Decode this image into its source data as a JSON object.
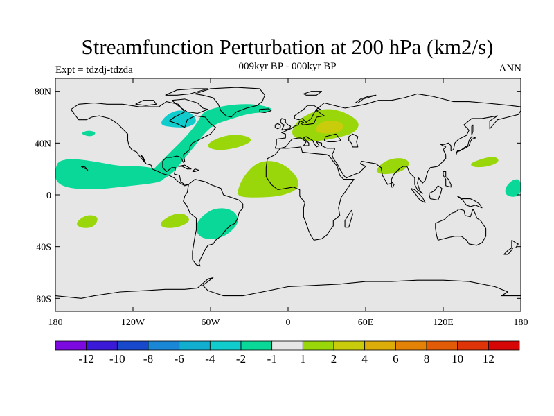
{
  "title": "Streamfunction Perturbation at 200 hPa (km2/s)",
  "subtitle": "009kyr BP - 000kyr BP",
  "left_string": "Expt = tdzdj-tdzda",
  "right_string": "ANN",
  "map": {
    "projection": "cylindrical-equidistant",
    "background": "#e6e6e6",
    "lon_range": [
      -180,
      180
    ],
    "lat_range": [
      -90,
      90
    ],
    "lat_ticks": [
      {
        "value": 80,
        "label": "80N"
      },
      {
        "value": 40,
        "label": "40N"
      },
      {
        "value": 0,
        "label": "0"
      },
      {
        "value": -40,
        "label": "40S"
      },
      {
        "value": -80,
        "label": "80S"
      }
    ],
    "lon_ticks": [
      {
        "value": -180,
        "label": "180"
      },
      {
        "value": -120,
        "label": "120W"
      },
      {
        "value": -60,
        "label": "60W"
      },
      {
        "value": 0,
        "label": "0"
      },
      {
        "value": 60,
        "label": "60E"
      },
      {
        "value": 120,
        "label": "120E"
      },
      {
        "value": 180,
        "label": "180"
      }
    ]
  },
  "colorbar": {
    "colors": [
      "#7c0ae0",
      "#3a1ad8",
      "#1848cc",
      "#1a86d6",
      "#12aed0",
      "#10cccc",
      "#0ad898",
      "#e6e6e6",
      "#9ad70a",
      "#c8cc0a",
      "#dcac08",
      "#e48208",
      "#e25c08",
      "#de3408",
      "#d60606"
    ],
    "labels": [
      "-12",
      "-10",
      "-8",
      "-6",
      "-4",
      "-2",
      "-1",
      "1",
      "2",
      "4",
      "6",
      "8",
      "10",
      "12"
    ]
  },
  "chart_data": {
    "type": "contour-map",
    "variable": "Streamfunction Perturbation at 200 hPa",
    "units": "km2/s",
    "levels": [
      -12,
      -10,
      -8,
      -6,
      -4,
      -2,
      -1,
      1,
      2,
      4,
      6,
      8,
      10,
      12
    ],
    "regions": [
      {
        "name": "north-atlantic-canada-low",
        "level_range": [
          -2,
          -1
        ],
        "color": "#0ad898",
        "points": [
          [
            -110,
            12
          ],
          [
            -106,
            18
          ],
          [
            -96,
            28
          ],
          [
            -86,
            38
          ],
          [
            -78,
            46
          ],
          [
            -70,
            56
          ],
          [
            -66,
            64
          ],
          [
            -54,
            68
          ],
          [
            -40,
            70
          ],
          [
            -25,
            70
          ],
          [
            -12,
            67
          ],
          [
            -14,
            64
          ],
          [
            -30,
            63
          ],
          [
            -46,
            58
          ],
          [
            -58,
            54
          ],
          [
            -66,
            46
          ],
          [
            -72,
            38
          ],
          [
            -82,
            26
          ],
          [
            -88,
            18
          ],
          [
            -96,
            12
          ],
          [
            -104,
            10
          ]
        ]
      },
      {
        "name": "hudson-bay-core",
        "level_range": [
          -4,
          -2
        ],
        "color": "#10cccc",
        "points": [
          [
            -100,
            54
          ],
          [
            -94,
            62
          ],
          [
            -84,
            66
          ],
          [
            -74,
            63
          ],
          [
            -70,
            56
          ],
          [
            -78,
            52
          ],
          [
            -88,
            52
          ]
        ]
      },
      {
        "name": "central-pacific-low",
        "level_range": [
          -2,
          -1
        ],
        "color": "#0ad898",
        "points": [
          [
            -180,
            20
          ],
          [
            -178,
            26
          ],
          [
            -168,
            28
          ],
          [
            -150,
            26
          ],
          [
            -130,
            22
          ],
          [
            -110,
            22
          ],
          [
            -100,
            19
          ],
          [
            -95,
            14
          ],
          [
            -98,
            10
          ],
          [
            -112,
            8
          ],
          [
            -130,
            6
          ],
          [
            -150,
            4
          ],
          [
            -170,
            5
          ],
          [
            -180,
            10
          ]
        ]
      },
      {
        "name": "north-pacific-patch",
        "level_range": [
          -2,
          -1
        ],
        "color": "#0ad898",
        "points": [
          [
            -160,
            48
          ],
          [
            -154,
            50
          ],
          [
            -148,
            48
          ],
          [
            -152,
            45
          ],
          [
            -158,
            46
          ]
        ]
      },
      {
        "name": "south-america-low",
        "level_range": [
          -2,
          -1
        ],
        "color": "#0ad898",
        "points": [
          [
            -72,
            -22
          ],
          [
            -60,
            -11
          ],
          [
            -48,
            -10
          ],
          [
            -40,
            -14
          ],
          [
            -38,
            -22
          ],
          [
            -48,
            -32
          ],
          [
            -60,
            -35
          ],
          [
            -70,
            -32
          ]
        ]
      },
      {
        "name": "west-pacific-low",
        "level_range": [
          -2,
          -1
        ],
        "color": "#0ad898",
        "points": [
          [
            168,
            6
          ],
          [
            174,
            12
          ],
          [
            180,
            12
          ],
          [
            180,
            0
          ],
          [
            174,
            -2
          ],
          [
            168,
            0
          ]
        ]
      },
      {
        "name": "europe-high",
        "level_range": [
          1,
          2
        ],
        "color": "#9ad70a",
        "points": [
          [
            2,
            47
          ],
          [
            6,
            56
          ],
          [
            16,
            63
          ],
          [
            30,
            67
          ],
          [
            44,
            64
          ],
          [
            56,
            56
          ],
          [
            52,
            48
          ],
          [
            38,
            44
          ],
          [
            20,
            41
          ],
          [
            8,
            43
          ]
        ]
      },
      {
        "name": "europe-high-core",
        "level_range": [
          2,
          4
        ],
        "color": "#c8cc0a",
        "points": [
          [
            20,
            49
          ],
          [
            24,
            56
          ],
          [
            36,
            58
          ],
          [
            44,
            54
          ],
          [
            40,
            48
          ],
          [
            28,
            47
          ]
        ]
      },
      {
        "name": "north-atlantic-high",
        "level_range": [
          1,
          2
        ],
        "color": "#9ad70a",
        "points": [
          [
            -64,
            38
          ],
          [
            -55,
            44
          ],
          [
            -42,
            47
          ],
          [
            -30,
            45
          ],
          [
            -28,
            41
          ],
          [
            -40,
            36
          ],
          [
            -56,
            34
          ]
        ]
      },
      {
        "name": "tropical-atlantic-high",
        "level_range": [
          1,
          2
        ],
        "color": "#9ad70a",
        "points": [
          [
            -40,
            0
          ],
          [
            -36,
            12
          ],
          [
            -26,
            24
          ],
          [
            -14,
            27
          ],
          [
            -2,
            23
          ],
          [
            8,
            13
          ],
          [
            8,
            4
          ],
          [
            -6,
            -1
          ],
          [
            -20,
            -2
          ],
          [
            -34,
            -2
          ]
        ]
      },
      {
        "name": "south-pacific-high",
        "level_range": [
          1,
          2
        ],
        "color": "#9ad70a",
        "points": [
          [
            -100,
            -22
          ],
          [
            -90,
            -15
          ],
          [
            -80,
            -14
          ],
          [
            -75,
            -20
          ],
          [
            -84,
            -25
          ],
          [
            -96,
            -26
          ]
        ]
      },
      {
        "name": "southwest-pacific-high",
        "level_range": [
          1,
          2
        ],
        "color": "#9ad70a",
        "points": [
          [
            -165,
            -22
          ],
          [
            -156,
            -15
          ],
          [
            -146,
            -17
          ],
          [
            -150,
            -25
          ],
          [
            -160,
            -26
          ]
        ]
      },
      {
        "name": "india-high",
        "level_range": [
          1,
          2
        ],
        "color": "#9ad70a",
        "points": [
          [
            68,
            20
          ],
          [
            76,
            27
          ],
          [
            88,
            29
          ],
          [
            95,
            25
          ],
          [
            90,
            19
          ],
          [
            80,
            16
          ],
          [
            70,
            16
          ]
        ]
      },
      {
        "name": "west-pacific-high",
        "level_range": [
          1,
          2
        ],
        "color": "#9ad70a",
        "points": [
          [
            140,
            24
          ],
          [
            150,
            28
          ],
          [
            160,
            30
          ],
          [
            164,
            26
          ],
          [
            156,
            22
          ],
          [
            144,
            21
          ]
        ]
      }
    ]
  }
}
